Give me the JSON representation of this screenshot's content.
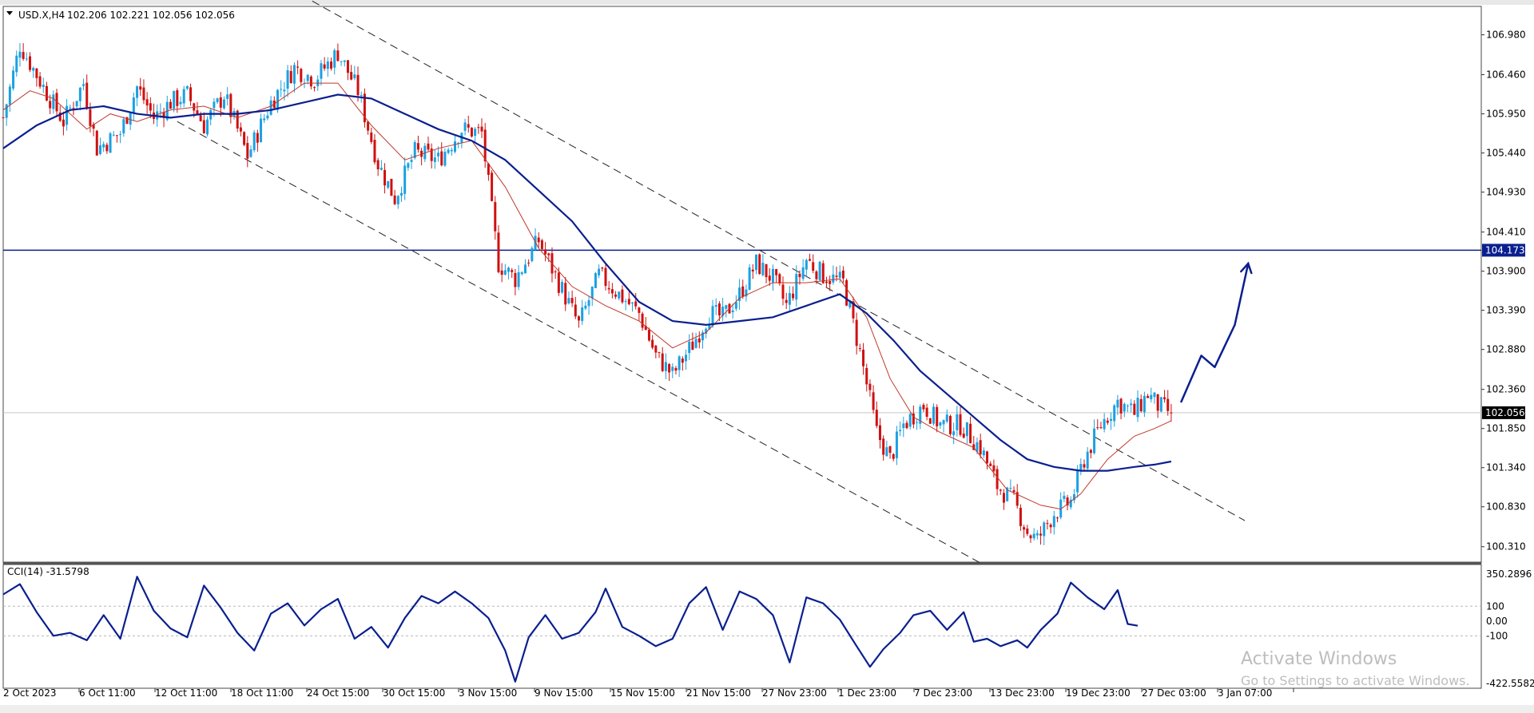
{
  "header": {
    "symbol": "USD.X,H4",
    "ohlc": "102.206 102.221 102.056 102.056"
  },
  "indicator": {
    "label": "CCI(14) -31.5798",
    "levels": [
      100,
      0,
      -100
    ],
    "scale_labels": [
      "350.2896",
      "100",
      "0.00",
      "-100",
      "-422.5582"
    ]
  },
  "watermark": {
    "line1": "Activate Windows",
    "line2": "Go to Settings to activate Windows."
  },
  "colors": {
    "bull": "#1ba1e2",
    "bear": "#d01010",
    "ma_fast": "#c0392b",
    "ma_slow": "#0a1f8f",
    "hline": "#0a1f8f",
    "cci": "#0a1f8f",
    "price_tag_bg": "#000000",
    "level_tag_bg": "#0a1f8f"
  },
  "chart_data": [
    {
      "type": "candlestick",
      "title": "USD.X,H4",
      "y_ticks": [
        "106.980",
        "106.460",
        "105.950",
        "105.440",
        "104.930",
        "104.410",
        "103.900",
        "103.390",
        "102.880",
        "102.360",
        "101.850",
        "101.340",
        "100.830",
        "100.310"
      ],
      "ylim": [
        100.12,
        107.35
      ],
      "x_ticks": [
        "2 Oct 2023",
        "6 Oct 11:00",
        "12 Oct 11:00",
        "18 Oct 11:00",
        "24 Oct 15:00",
        "30 Oct 15:00",
        "3 Nov 15:00",
        "9 Nov 15:00",
        "15 Nov 15:00",
        "21 Nov 15:00",
        "27 Nov 23:00",
        "1 Dec 23:00",
        "7 Dec 23:00",
        "13 Dec 23:00",
        "19 Dec 23:00",
        "27 Dec 03:00",
        "3 Jan 07:00"
      ],
      "horizontal_level": 104.173,
      "horizontal_level_label": "104.173",
      "current_price": 102.056,
      "current_price_label": "102.056",
      "close_path": [
        [
          0,
          105.9
        ],
        [
          5,
          106.85
        ],
        [
          12,
          106.3
        ],
        [
          18,
          105.85
        ],
        [
          24,
          106.35
        ],
        [
          28,
          105.5
        ],
        [
          35,
          105.7
        ],
        [
          40,
          106.3
        ],
        [
          45,
          105.9
        ],
        [
          50,
          106.1
        ],
        [
          55,
          106.2
        ],
        [
          60,
          105.8
        ],
        [
          66,
          106.2
        ],
        [
          73,
          105.4
        ],
        [
          80,
          106.1
        ],
        [
          87,
          106.55
        ],
        [
          93,
          106.4
        ],
        [
          100,
          106.75
        ],
        [
          106,
          106.25
        ],
        [
          112,
          105.3
        ],
        [
          117,
          104.85
        ],
        [
          123,
          105.45
        ],
        [
          130,
          105.35
        ],
        [
          137,
          105.75
        ],
        [
          143,
          105.7
        ],
        [
          148,
          104.0
        ],
        [
          153,
          103.8
        ],
        [
          160,
          104.3
        ],
        [
          166,
          103.75
        ],
        [
          172,
          103.2
        ],
        [
          178,
          103.85
        ],
        [
          184,
          103.6
        ],
        [
          190,
          103.35
        ],
        [
          195,
          102.8
        ],
        [
          200,
          102.55
        ],
        [
          206,
          102.95
        ],
        [
          211,
          103.35
        ],
        [
          215,
          103.3
        ],
        [
          220,
          103.6
        ],
        [
          225,
          104.0
        ],
        [
          230,
          103.8
        ],
        [
          234,
          103.45
        ],
        [
          240,
          104.05
        ],
        [
          245,
          103.85
        ],
        [
          251,
          103.75
        ],
        [
          256,
          102.85
        ],
        [
          261,
          101.8
        ],
        [
          265,
          101.45
        ],
        [
          269,
          101.9
        ],
        [
          275,
          102.15
        ],
        [
          280,
          101.9
        ],
        [
          286,
          101.9
        ],
        [
          292,
          101.6
        ],
        [
          297,
          101.1
        ],
        [
          302,
          100.9
        ],
        [
          306,
          100.5
        ],
        [
          309,
          100.4
        ],
        [
          314,
          100.75
        ],
        [
          319,
          100.9
        ],
        [
          323,
          101.45
        ],
        [
          328,
          101.9
        ],
        [
          333,
          102.2
        ],
        [
          338,
          102.05
        ],
        [
          342,
          102.3
        ],
        [
          345,
          102.15
        ],
        [
          349,
          102.056
        ]
      ],
      "ma_fast": [
        [
          0,
          106.0
        ],
        [
          8,
          106.25
        ],
        [
          15,
          106.15
        ],
        [
          25,
          105.75
        ],
        [
          32,
          105.95
        ],
        [
          40,
          105.85
        ],
        [
          50,
          106.0
        ],
        [
          60,
          106.05
        ],
        [
          70,
          105.9
        ],
        [
          80,
          106.05
        ],
        [
          90,
          106.35
        ],
        [
          100,
          106.35
        ],
        [
          110,
          105.8
        ],
        [
          120,
          105.35
        ],
        [
          130,
          105.5
        ],
        [
          140,
          105.6
        ],
        [
          150,
          105.0
        ],
        [
          160,
          104.2
        ],
        [
          170,
          103.7
        ],
        [
          180,
          103.45
        ],
        [
          190,
          103.25
        ],
        [
          200,
          102.9
        ],
        [
          210,
          103.1
        ],
        [
          220,
          103.55
        ],
        [
          230,
          103.75
        ],
        [
          240,
          103.75
        ],
        [
          250,
          103.8
        ],
        [
          258,
          103.3
        ],
        [
          265,
          102.5
        ],
        [
          272,
          102.0
        ],
        [
          280,
          101.8
        ],
        [
          290,
          101.6
        ],
        [
          300,
          101.05
        ],
        [
          310,
          100.85
        ],
        [
          316,
          100.8
        ],
        [
          322,
          101.0
        ],
        [
          330,
          101.45
        ],
        [
          338,
          101.75
        ],
        [
          344,
          101.85
        ],
        [
          349,
          101.95
        ]
      ],
      "ma_slow": [
        [
          0,
          105.5
        ],
        [
          10,
          105.8
        ],
        [
          20,
          106.0
        ],
        [
          30,
          106.05
        ],
        [
          40,
          105.95
        ],
        [
          50,
          105.9
        ],
        [
          60,
          105.95
        ],
        [
          70,
          105.95
        ],
        [
          80,
          106.0
        ],
        [
          90,
          106.1
        ],
        [
          100,
          106.2
        ],
        [
          110,
          106.15
        ],
        [
          120,
          105.95
        ],
        [
          130,
          105.75
        ],
        [
          140,
          105.6
        ],
        [
          150,
          105.35
        ],
        [
          160,
          104.95
        ],
        [
          170,
          104.55
        ],
        [
          180,
          104.0
        ],
        [
          190,
          103.5
        ],
        [
          200,
          103.25
        ],
        [
          210,
          103.2
        ],
        [
          220,
          103.25
        ],
        [
          230,
          103.3
        ],
        [
          240,
          103.45
        ],
        [
          250,
          103.6
        ],
        [
          258,
          103.35
        ],
        [
          266,
          103.0
        ],
        [
          274,
          102.6
        ],
        [
          282,
          102.3
        ],
        [
          290,
          102.0
        ],
        [
          298,
          101.7
        ],
        [
          306,
          101.45
        ],
        [
          314,
          101.35
        ],
        [
          322,
          101.3
        ],
        [
          330,
          101.3
        ],
        [
          338,
          101.35
        ],
        [
          344,
          101.38
        ],
        [
          349,
          101.42
        ]
      ],
      "trend_lines": [
        {
          "from": [
            89,
            107.5
          ],
          "to": [
            371,
            100.65
          ]
        },
        {
          "from": [
            52,
            105.85
          ],
          "to": [
            294,
            100.05
          ]
        }
      ],
      "projection": [
        [
          352,
          102.2
        ],
        [
          358,
          102.8
        ],
        [
          362,
          102.65
        ],
        [
          368,
          103.2
        ],
        [
          372,
          104.0
        ]
      ]
    },
    {
      "type": "line",
      "title": "CCI(14) -31.5798",
      "ylim": [
        -422.5582,
        350.2896
      ],
      "levels": [
        100,
        0,
        -100
      ],
      "values": [
        [
          0,
          180
        ],
        [
          5,
          250
        ],
        [
          10,
          60
        ],
        [
          15,
          -100
        ],
        [
          20,
          -80
        ],
        [
          25,
          -130
        ],
        [
          30,
          40
        ],
        [
          35,
          -120
        ],
        [
          40,
          300
        ],
        [
          45,
          70
        ],
        [
          50,
          -50
        ],
        [
          55,
          -110
        ],
        [
          60,
          240
        ],
        [
          65,
          90
        ],
        [
          70,
          -80
        ],
        [
          75,
          -200
        ],
        [
          80,
          50
        ],
        [
          85,
          120
        ],
        [
          90,
          -30
        ],
        [
          95,
          80
        ],
        [
          100,
          150
        ],
        [
          105,
          -120
        ],
        [
          110,
          -40
        ],
        [
          115,
          -180
        ],
        [
          120,
          20
        ],
        [
          125,
          170
        ],
        [
          130,
          120
        ],
        [
          135,
          200
        ],
        [
          140,
          120
        ],
        [
          145,
          20
        ],
        [
          150,
          -200
        ],
        [
          153,
          -410
        ],
        [
          157,
          -110
        ],
        [
          162,
          40
        ],
        [
          167,
          -120
        ],
        [
          172,
          -80
        ],
        [
          177,
          60
        ],
        [
          180,
          220
        ],
        [
          185,
          -40
        ],
        [
          190,
          -100
        ],
        [
          195,
          -170
        ],
        [
          200,
          -120
        ],
        [
          205,
          120
        ],
        [
          210,
          230
        ],
        [
          215,
          -60
        ],
        [
          220,
          200
        ],
        [
          225,
          150
        ],
        [
          230,
          40
        ],
        [
          235,
          -280
        ],
        [
          240,
          160
        ],
        [
          245,
          120
        ],
        [
          250,
          10
        ],
        [
          255,
          -170
        ],
        [
          259,
          -310
        ],
        [
          263,
          -190
        ],
        [
          268,
          -80
        ],
        [
          272,
          40
        ],
        [
          277,
          70
        ],
        [
          282,
          -60
        ],
        [
          287,
          60
        ],
        [
          290,
          -140
        ],
        [
          294,
          -120
        ],
        [
          298,
          -170
        ],
        [
          303,
          -130
        ],
        [
          306,
          -180
        ],
        [
          310,
          -60
        ],
        [
          315,
          50
        ],
        [
          319,
          260
        ],
        [
          324,
          160
        ],
        [
          329,
          80
        ],
        [
          333,
          210
        ],
        [
          336,
          -20
        ],
        [
          339,
          -31.58
        ]
      ]
    }
  ]
}
